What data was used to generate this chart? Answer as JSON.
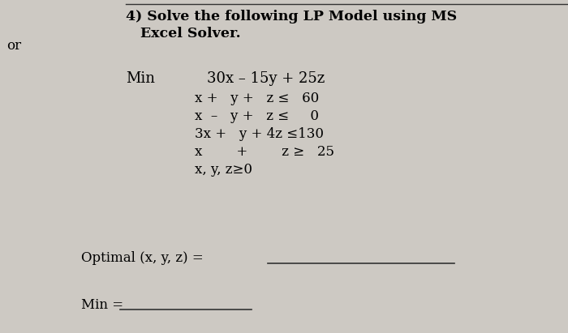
{
  "bg_color": "#cdc9c3",
  "title_line1": "4) Solve the following LP Model using MS",
  "title_line2": "   Excel Solver.",
  "side_text": "or",
  "min_label": "Min",
  "objective": "30x – 15y + 25z",
  "c1": "x +   y +   z ≤   60",
  "c2": "x  –   y +   z ≤     0",
  "c3": "3x +   y + 4z ≤130",
  "c4": "x        +        z ≥   25",
  "c5": "x, y, z≥0",
  "optimal_label": "Optimal (x, y, z) =",
  "min_eq_label": "Min =",
  "line_color": "#333333",
  "font_size_title": 12.5,
  "font_size_body": 12,
  "font_size_small": 11
}
